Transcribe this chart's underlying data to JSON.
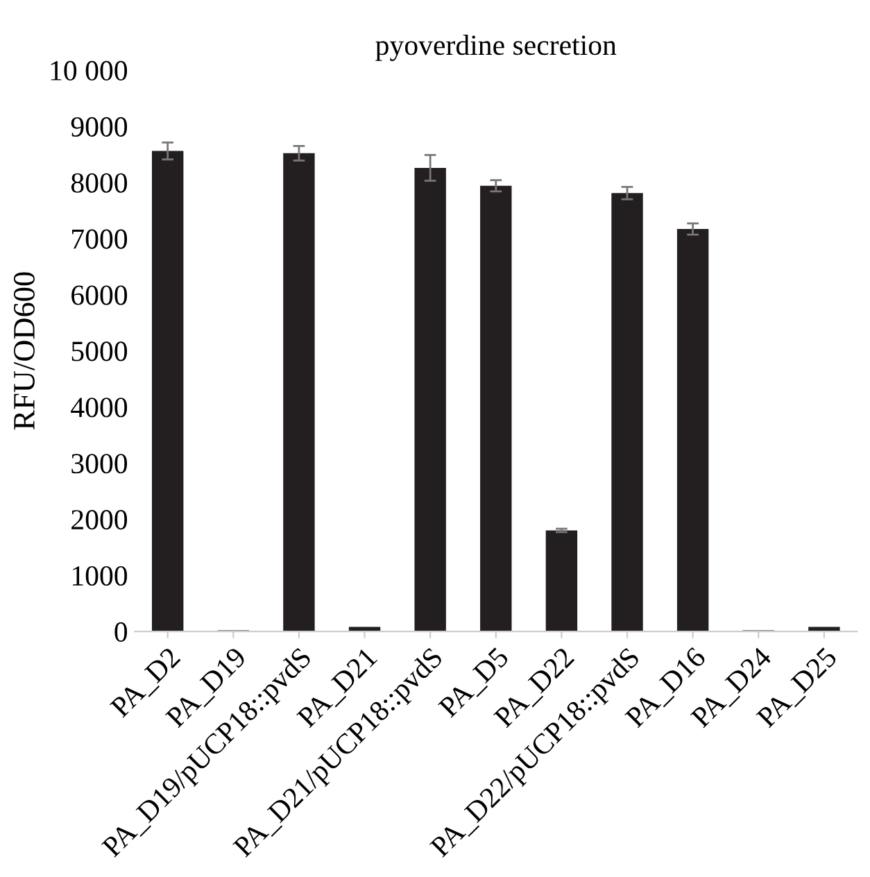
{
  "chart_data": {
    "type": "bar",
    "title": "pyoverdine secretion",
    "ylabel": "RFU/OD600",
    "categories": [
      "PA_D2",
      "PA_D19",
      "PA_D19/pUCP18::pvdS",
      "PA_D21",
      "PA_D21/pUCP18::pvdS",
      "PA_D5",
      "PA_D22",
      "PA_D22/pUCP18::pvdS",
      "PA_D16",
      "PA_D24",
      "PA_D25"
    ],
    "values": [
      8560,
      20,
      8520,
      80,
      8260,
      7940,
      1800,
      7810,
      7170,
      20,
      80
    ],
    "errors": [
      150,
      null,
      130,
      null,
      230,
      100,
      30,
      110,
      100,
      null,
      null
    ],
    "color": "#231f20",
    "ylim": [
      0,
      10000
    ],
    "yticks": [
      0,
      1000,
      2000,
      3000,
      4000,
      5000,
      6000,
      7000,
      8000,
      9000,
      {
        "value": 10000,
        "label": "10 000"
      }
    ],
    "grid": false
  }
}
